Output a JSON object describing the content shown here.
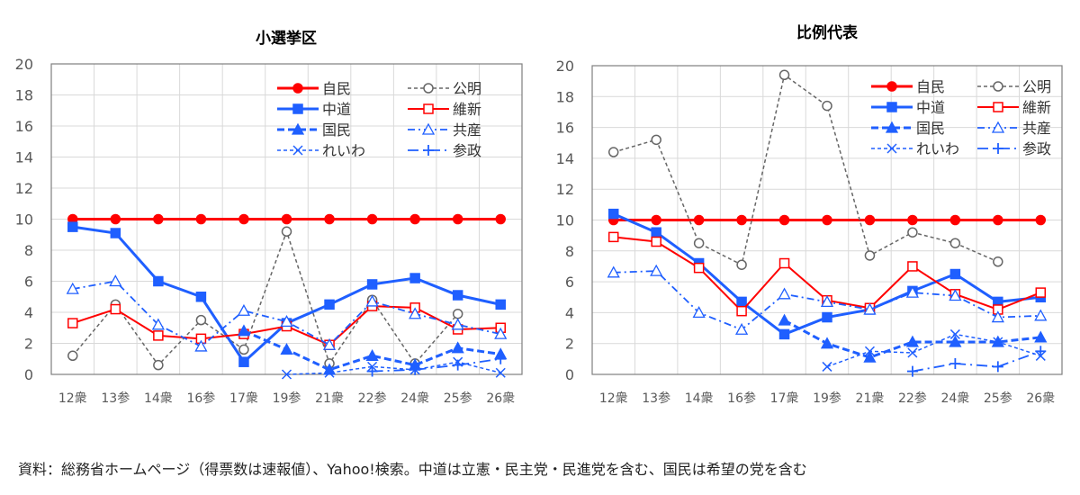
{
  "chart_data": [
    {
      "type": "line",
      "title": "小選挙区",
      "categories": [
        "12衆",
        "13参",
        "14衆",
        "16参",
        "17衆",
        "19参",
        "21衆",
        "22参",
        "24衆",
        "25参",
        "26衆"
      ],
      "ylim": [
        0,
        20
      ],
      "yticks": [
        0,
        2,
        4,
        6,
        8,
        10,
        12,
        14,
        16,
        18,
        20
      ],
      "grid": true,
      "legend_placement": "top-right",
      "series": [
        {
          "name": "自民",
          "style": "jimin",
          "values": [
            10,
            10,
            10,
            10,
            10,
            10,
            10,
            10,
            10,
            10,
            10
          ]
        },
        {
          "name": "公明",
          "style": "komei",
          "values": [
            1.2,
            4.5,
            0.6,
            3.5,
            1.6,
            9.2,
            0.7,
            4.8,
            0.7,
            3.9,
            null
          ]
        },
        {
          "name": "中道",
          "style": "chudo",
          "values": [
            9.5,
            9.1,
            6.0,
            5.0,
            0.8,
            3.3,
            4.5,
            5.8,
            6.2,
            5.1,
            4.5
          ]
        },
        {
          "name": "維新",
          "style": "ishin",
          "values": [
            3.3,
            4.2,
            2.5,
            2.3,
            2.6,
            3.1,
            1.9,
            4.4,
            4.3,
            2.9,
            3.0
          ]
        },
        {
          "name": "国民",
          "style": "kokumin",
          "values": [
            null,
            null,
            null,
            null,
            2.8,
            1.6,
            0.3,
            1.2,
            0.6,
            1.7,
            1.3
          ]
        },
        {
          "name": "共産",
          "style": "kyosan",
          "values": [
            5.5,
            6.0,
            3.2,
            1.8,
            4.1,
            3.4,
            1.9,
            4.7,
            3.9,
            3.2,
            2.6
          ]
        },
        {
          "name": "れいわ",
          "style": "reiwa",
          "values": [
            null,
            null,
            null,
            null,
            null,
            0.0,
            0.1,
            0.5,
            0.3,
            0.8,
            0.1
          ]
        },
        {
          "name": "参政",
          "style": "sansei",
          "values": [
            null,
            null,
            null,
            null,
            null,
            null,
            null,
            0.2,
            0.3,
            0.6,
            1.0
          ]
        }
      ]
    },
    {
      "type": "line",
      "title": "比例代表",
      "categories": [
        "12衆",
        "13参",
        "14衆",
        "16参",
        "17衆",
        "19参",
        "21衆",
        "22参",
        "24衆",
        "25参",
        "26衆"
      ],
      "ylim": [
        0,
        20
      ],
      "yticks": [
        0,
        2,
        4,
        6,
        8,
        10,
        12,
        14,
        16,
        18,
        20
      ],
      "grid": true,
      "legend_placement": "top-right",
      "series": [
        {
          "name": "自民",
          "style": "jimin",
          "values": [
            10,
            10,
            10,
            10,
            10,
            10,
            10,
            10,
            10,
            10,
            10
          ]
        },
        {
          "name": "公明",
          "style": "komei",
          "values": [
            14.4,
            15.2,
            8.5,
            7.1,
            19.4,
            17.4,
            7.7,
            9.2,
            8.5,
            7.3,
            null
          ]
        },
        {
          "name": "中道",
          "style": "chudo",
          "values": [
            10.4,
            9.2,
            7.2,
            4.7,
            2.6,
            3.7,
            4.2,
            5.4,
            6.5,
            4.7,
            5.0
          ]
        },
        {
          "name": "維新",
          "style": "ishin",
          "values": [
            8.9,
            8.6,
            6.9,
            4.1,
            7.2,
            4.8,
            4.3,
            7.0,
            5.2,
            4.2,
            5.3
          ]
        },
        {
          "name": "国民",
          "style": "kokumin",
          "values": [
            null,
            null,
            null,
            null,
            3.5,
            2.0,
            1.1,
            2.1,
            2.1,
            2.1,
            2.4
          ]
        },
        {
          "name": "共産",
          "style": "kyosan",
          "values": [
            6.6,
            6.7,
            4.0,
            2.9,
            5.2,
            4.7,
            4.2,
            5.3,
            5.1,
            3.7,
            3.8
          ]
        },
        {
          "name": "れいわ",
          "style": "reiwa",
          "values": [
            null,
            null,
            null,
            null,
            null,
            0.5,
            1.5,
            1.4,
            2.6,
            2.1,
            1.2
          ]
        },
        {
          "name": "参政",
          "style": "sansei",
          "values": [
            null,
            null,
            null,
            null,
            null,
            null,
            null,
            0.2,
            0.7,
            0.5,
            1.5
          ]
        }
      ]
    }
  ],
  "legend_order": [
    [
      "自民",
      "中道",
      "国民",
      "れいわ"
    ],
    [
      "公明",
      "維新",
      "共産",
      "参政"
    ]
  ],
  "colors": {
    "red": "#ff0000",
    "blue": "#1f5fff",
    "gray": "#666666",
    "grid": "#d9d9d9",
    "axis": "#7f7f7f"
  },
  "caption": "資料：総務省ホームページ（得票数は速報値）、Yahoo!検索。中道は立憲・民主党・民進党を含む、国民は希望の党を含む"
}
